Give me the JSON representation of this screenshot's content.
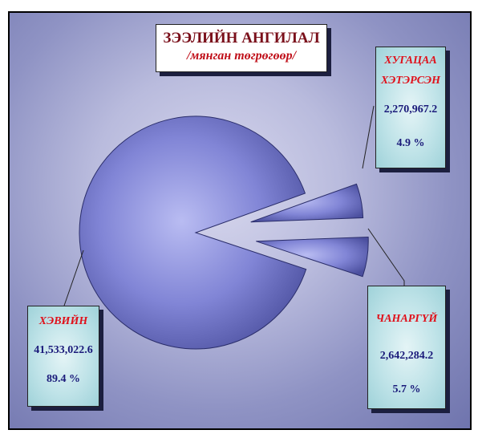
{
  "chart_data": {
    "type": "pie",
    "title": "ЗЭЭЛИЙН АНГИЛАЛ",
    "subtitle": "/мянган төгрөгөөр/",
    "slices": [
      {
        "name": "ХЭВИЙН",
        "value": 41533022.6,
        "value_label": "41,533,022.6",
        "percent_label": "89.4 %",
        "percent": 89.4
      },
      {
        "name": "ХУГАЦАА ХЭТЭРСЭН",
        "value": 2270967.2,
        "value_label": "2,270,967.2",
        "percent_label": "4.9 %",
        "percent": 4.9
      },
      {
        "name": "ЧАНАРГҮЙ",
        "value": 2642284.2,
        "value_label": "2,642,284.2",
        "percent_label": "5.7 %",
        "percent": 5.7
      }
    ],
    "legend": "none",
    "colors": {
      "pie_main": "#8c8fe0",
      "pie_dark": "#3c3f8a",
      "name_text": "#e0101a",
      "value_text": "#1a1a7a",
      "title_text": "#7a0f1a"
    }
  },
  "labels": {
    "normal": {
      "name": "ХЭВИЙН",
      "value": "41,533,022.6",
      "percent": "89.4 %"
    },
    "overdue": {
      "name_line1": "ХУГАЦАА",
      "name_line2": "ХЭТЭРСЭН",
      "value": "2,270,967.2",
      "percent": "4.9 %"
    },
    "bad": {
      "name": "ЧАНАРГҮЙ",
      "value": "2,642,284.2",
      "percent": "5.7 %"
    }
  }
}
